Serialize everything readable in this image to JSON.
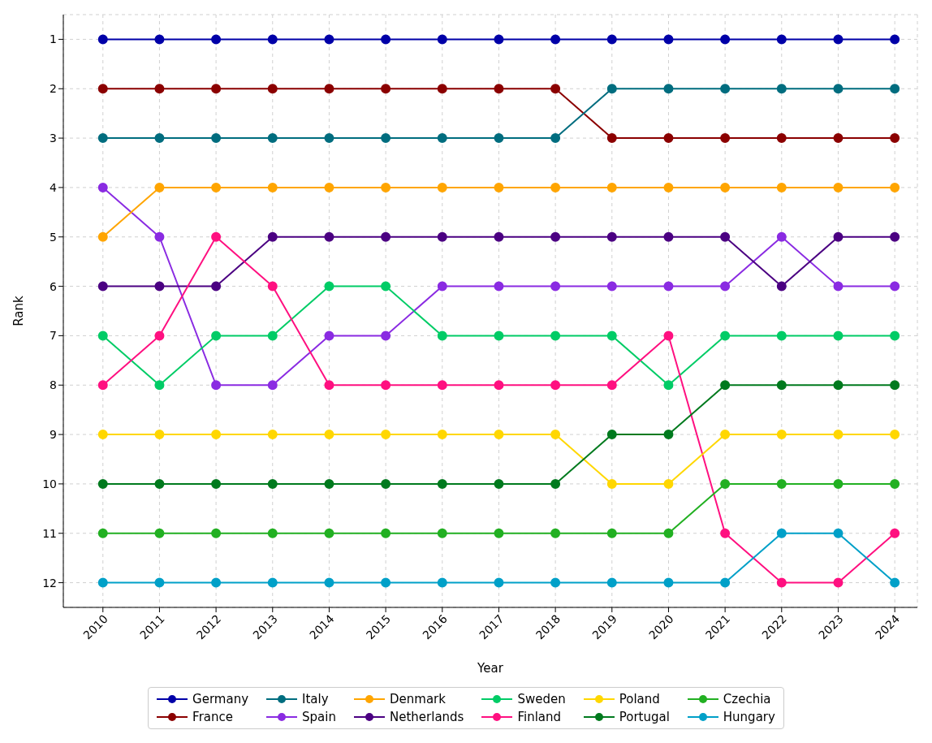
{
  "chart_data": {
    "type": "line",
    "xlabel": "Year",
    "ylabel": "Rank",
    "categories": [
      "2010",
      "2011",
      "2012",
      "2013",
      "2014",
      "2015",
      "2016",
      "2017",
      "2018",
      "2019",
      "2020",
      "2021",
      "2022",
      "2023",
      "2024"
    ],
    "ylim": [
      12.5,
      0.5
    ],
    "yticks": [
      1,
      2,
      3,
      4,
      5,
      6,
      7,
      8,
      9,
      10,
      11,
      12
    ],
    "grid": true,
    "legend": "bottom",
    "marker": "circle",
    "line_style": "solid",
    "series": [
      {
        "name": "Germany",
        "color": "#0000a8",
        "values": [
          1,
          1,
          1,
          1,
          1,
          1,
          1,
          1,
          1,
          1,
          1,
          1,
          1,
          1,
          1
        ]
      },
      {
        "name": "France",
        "color": "#8b0000",
        "values": [
          2,
          2,
          2,
          2,
          2,
          2,
          2,
          2,
          2,
          3,
          3,
          3,
          3,
          3,
          3
        ]
      },
      {
        "name": "Italy",
        "color": "#006d7f",
        "values": [
          3,
          3,
          3,
          3,
          3,
          3,
          3,
          3,
          3,
          2,
          2,
          2,
          2,
          2,
          2
        ]
      },
      {
        "name": "Spain",
        "color": "#8a2be2",
        "values": [
          4,
          5,
          8,
          8,
          7,
          7,
          6,
          6,
          6,
          6,
          6,
          6,
          5,
          6,
          6
        ]
      },
      {
        "name": "Denmark",
        "color": "#ffa500",
        "values": [
          5,
          4,
          4,
          4,
          4,
          4,
          4,
          4,
          4,
          4,
          4,
          4,
          4,
          4,
          4
        ]
      },
      {
        "name": "Netherlands",
        "color": "#4b0082",
        "values": [
          6,
          6,
          6,
          5,
          5,
          5,
          5,
          5,
          5,
          5,
          5,
          5,
          6,
          5,
          5
        ]
      },
      {
        "name": "Sweden",
        "color": "#00cc66",
        "values": [
          7,
          8,
          7,
          7,
          6,
          6,
          7,
          7,
          7,
          7,
          8,
          7,
          7,
          7,
          7
        ]
      },
      {
        "name": "Finland",
        "color": "#ff1080",
        "values": [
          8,
          7,
          5,
          6,
          8,
          8,
          8,
          8,
          8,
          8,
          7,
          11,
          12,
          12,
          11
        ]
      },
      {
        "name": "Poland",
        "color": "#ffd700",
        "values": [
          9,
          9,
          9,
          9,
          9,
          9,
          9,
          9,
          9,
          10,
          10,
          9,
          9,
          9,
          9
        ]
      },
      {
        "name": "Portugal",
        "color": "#007a1e",
        "values": [
          10,
          10,
          10,
          10,
          10,
          10,
          10,
          10,
          10,
          9,
          9,
          8,
          8,
          8,
          8
        ]
      },
      {
        "name": "Czechia",
        "color": "#22b022",
        "values": [
          11,
          11,
          11,
          11,
          11,
          11,
          11,
          11,
          11,
          11,
          11,
          10,
          10,
          10,
          10
        ]
      },
      {
        "name": "Hungary",
        "color": "#00a0c8",
        "values": [
          12,
          12,
          12,
          12,
          12,
          12,
          12,
          12,
          12,
          12,
          12,
          12,
          11,
          11,
          12
        ]
      }
    ]
  }
}
